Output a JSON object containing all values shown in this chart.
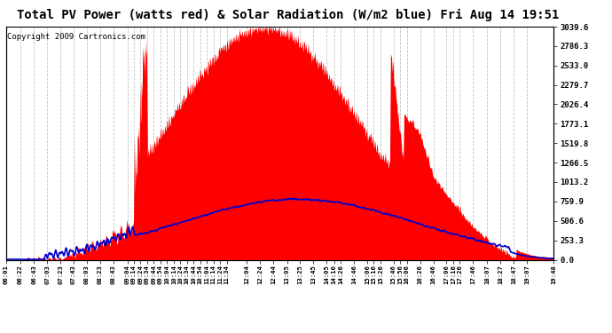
{
  "title": "Total PV Power (watts red) & Solar Radiation (W/m2 blue) Fri Aug 14 19:51",
  "copyright": "Copyright 2009 Cartronics.com",
  "y_right_ticks": [
    0.0,
    253.3,
    506.6,
    759.9,
    1013.2,
    1266.5,
    1519.8,
    1773.1,
    2026.4,
    2279.7,
    2533.0,
    2786.3,
    3039.6
  ],
  "y_max": 3039.6,
  "y_min": 0.0,
  "background_color": "#ffffff",
  "plot_bg_color": "#ffffff",
  "grid_color": "#c0c0c0",
  "fill_color": "#ff0000",
  "line_color": "#0000cc",
  "title_fontsize": 10,
  "tick_fontsize": 7,
  "copyright_fontsize": 6.5
}
